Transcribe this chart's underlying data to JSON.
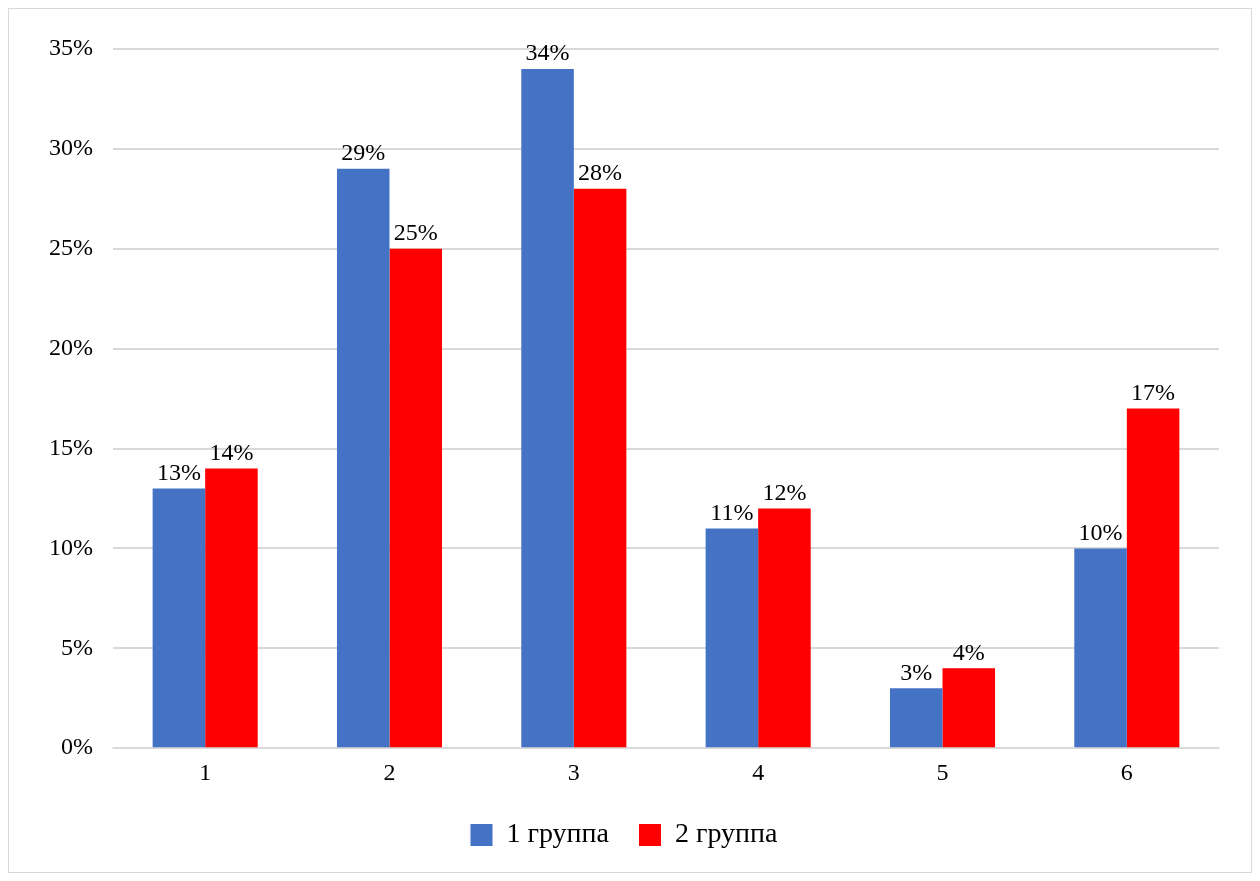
{
  "chart_data": {
    "type": "bar",
    "categories": [
      "1",
      "2",
      "3",
      "4",
      "5",
      "6"
    ],
    "series": [
      {
        "name": "1 группа",
        "color": "#4472c4",
        "values": [
          13,
          29,
          34,
          11,
          3,
          10
        ],
        "value_labels": [
          "13%",
          "29%",
          "34%",
          "11%",
          "3%",
          "10%"
        ]
      },
      {
        "name": "2 группа",
        "color": "#ff0000",
        "values": [
          14,
          25,
          28,
          12,
          4,
          17
        ],
        "value_labels": [
          "14%",
          "25%",
          "28%",
          "12%",
          "4%",
          "17%"
        ]
      }
    ],
    "ylim": [
      0,
      35
    ],
    "yticks": [
      {
        "value": 0,
        "label": "0%"
      },
      {
        "value": 5,
        "label": "5%"
      },
      {
        "value": 10,
        "label": "10%"
      },
      {
        "value": 15,
        "label": "15%"
      },
      {
        "value": 20,
        "label": "20%"
      },
      {
        "value": 25,
        "label": "25%"
      },
      {
        "value": 30,
        "label": "30%"
      },
      {
        "value": 35,
        "label": "35%"
      }
    ],
    "grid": "y",
    "legend": "bottom"
  }
}
